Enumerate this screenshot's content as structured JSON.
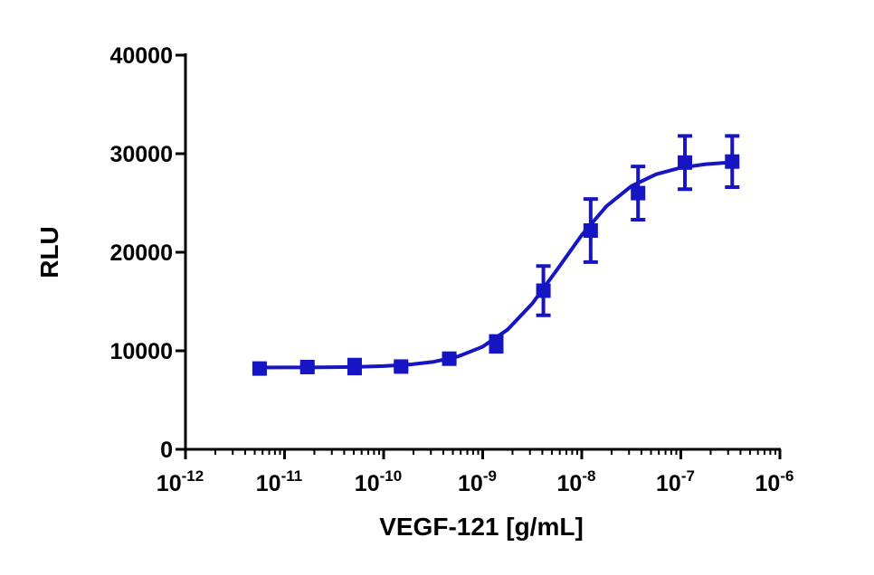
{
  "chart_data": {
    "type": "scatter",
    "x_label": "VEGF-121 [g/mL]",
    "y_label": "RLU",
    "x_scale": "log",
    "color": "#1515c4",
    "x": [
      5.6e-12,
      1.7e-11,
      5.1e-11,
      1.5e-10,
      4.6e-10,
      1.37e-09,
      4.1e-09,
      1.23e-08,
      3.7e-08,
      1.1e-07,
      3.3e-07
    ],
    "values": [
      8200,
      8350,
      8400,
      8400,
      9200,
      10700,
      16100,
      22200,
      26000,
      29100,
      29200
    ],
    "errors": [
      300,
      300,
      700,
      300,
      300,
      800,
      2500,
      3200,
      2700,
      2700,
      2600
    ],
    "fit": {
      "x": [
        5.62e-12,
        1e-11,
        1.78e-11,
        3.16e-11,
        5.62e-11,
        1e-10,
        1.78e-10,
        3.16e-10,
        5.62e-10,
        1e-09,
        1.78e-09,
        3.16e-09,
        5.62e-09,
        1e-08,
        1.78e-08,
        3.16e-08,
        5.62e-08,
        1e-07,
        1.78e-07,
        3.16e-07
      ],
      "values": [
        8305,
        8309,
        8319,
        8337,
        8374,
        8448,
        8593,
        8874,
        9417,
        10419,
        12139,
        14781,
        18220,
        21744,
        24681,
        26704,
        27911,
        28580,
        28933,
        29115
      ]
    },
    "xlim": [
      1e-12,
      1e-06
    ],
    "xticks": [
      {
        "value": 1e-12,
        "label": "10",
        "exponent": "-12"
      },
      {
        "value": 1e-11,
        "label": "10",
        "exponent": "-11"
      },
      {
        "value": 1e-10,
        "label": "10",
        "exponent": "-10"
      },
      {
        "value": 1e-09,
        "label": "10",
        "exponent": "-9"
      },
      {
        "value": 1e-08,
        "label": "10",
        "exponent": "-8"
      },
      {
        "value": 1e-07,
        "label": "10",
        "exponent": "-7"
      },
      {
        "value": 1e-06,
        "label": "10",
        "exponent": "-6"
      }
    ],
    "ylim": [
      0,
      40000
    ],
    "yticks": [
      0,
      10000,
      20000,
      30000,
      40000
    ]
  }
}
